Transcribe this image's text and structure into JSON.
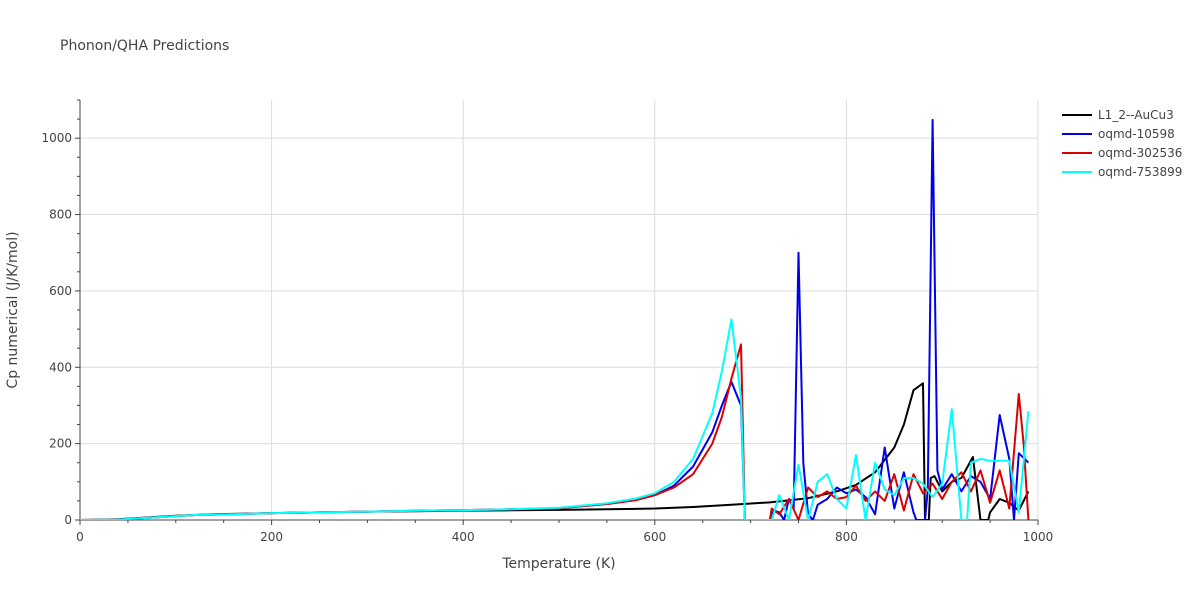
{
  "chart_data": {
    "type": "line",
    "title": "Phonon/QHA Predictions",
    "xlabel": "Temperature (K)",
    "ylabel": "Cp numerical (J/K/mol)",
    "xlim": [
      0,
      1000
    ],
    "ylim": [
      0,
      1100
    ],
    "xticks": [
      0,
      200,
      400,
      600,
      800,
      1000
    ],
    "yticks": [
      0,
      200,
      400,
      600,
      800,
      1000
    ],
    "grid": true,
    "legend_position": "top-right",
    "series": [
      {
        "name": "L1_2--AuCu3",
        "color": "#000000",
        "points": [
          [
            0,
            0
          ],
          [
            20,
            0.5
          ],
          [
            40,
            2
          ],
          [
            60,
            5
          ],
          [
            80,
            8
          ],
          [
            100,
            11
          ],
          [
            120,
            13
          ],
          [
            140,
            15
          ],
          [
            160,
            16
          ],
          [
            180,
            17
          ],
          [
            200,
            18
          ],
          [
            250,
            20
          ],
          [
            300,
            22
          ],
          [
            350,
            23
          ],
          [
            400,
            24.5
          ],
          [
            450,
            25.5
          ],
          [
            500,
            26.5
          ],
          [
            550,
            28
          ],
          [
            600,
            30
          ],
          [
            640,
            34
          ],
          [
            680,
            40
          ],
          [
            720,
            46
          ],
          [
            760,
            57
          ],
          [
            790,
            75
          ],
          [
            810,
            92
          ],
          [
            830,
            125
          ],
          [
            850,
            190
          ],
          [
            860,
            250
          ],
          [
            870,
            340
          ],
          [
            880,
            358
          ],
          [
            882,
            0
          ],
          [
            886,
            0
          ],
          [
            888,
            110
          ],
          [
            892,
            115
          ],
          [
            896,
            95
          ],
          [
            900,
            75
          ],
          [
            910,
            100
          ],
          [
            920,
            110
          ],
          [
            932,
            165
          ],
          [
            940,
            0
          ],
          [
            948,
            0
          ],
          [
            950,
            20
          ],
          [
            960,
            55
          ],
          [
            970,
            45
          ],
          [
            980,
            25
          ],
          [
            990,
            75
          ]
        ]
      },
      {
        "name": "oqmd-10598",
        "color": "#0000ee",
        "points": [
          [
            0,
            0
          ],
          [
            40,
            1
          ],
          [
            80,
            7
          ],
          [
            120,
            13
          ],
          [
            160,
            15
          ],
          [
            200,
            18
          ],
          [
            250,
            20
          ],
          [
            300,
            22
          ],
          [
            350,
            24
          ],
          [
            400,
            26
          ],
          [
            450,
            28
          ],
          [
            500,
            31
          ],
          [
            550,
            42
          ],
          [
            580,
            52
          ],
          [
            600,
            65
          ],
          [
            620,
            90
          ],
          [
            640,
            140
          ],
          [
            660,
            230
          ],
          [
            670,
            300
          ],
          [
            680,
            362
          ],
          [
            690,
            300
          ],
          [
            694,
            0
          ],
          [
            720,
            0
          ],
          [
            724,
            25
          ],
          [
            730,
            20
          ],
          [
            735,
            0
          ],
          [
            740,
            55
          ],
          [
            745,
            30
          ],
          [
            750,
            700
          ],
          [
            755,
            150
          ],
          [
            760,
            15
          ],
          [
            765,
            0
          ],
          [
            770,
            40
          ],
          [
            780,
            55
          ],
          [
            790,
            85
          ],
          [
            800,
            70
          ],
          [
            810,
            80
          ],
          [
            820,
            60
          ],
          [
            830,
            15
          ],
          [
            840,
            190
          ],
          [
            850,
            30
          ],
          [
            860,
            125
          ],
          [
            870,
            20
          ],
          [
            873,
            0
          ],
          [
            882,
            0
          ],
          [
            885,
            80
          ],
          [
            890,
            1048
          ],
          [
            895,
            130
          ],
          [
            900,
            80
          ],
          [
            910,
            120
          ],
          [
            920,
            75
          ],
          [
            930,
            115
          ],
          [
            940,
            100
          ],
          [
            950,
            55
          ],
          [
            960,
            275
          ],
          [
            970,
            160
          ],
          [
            975,
            0
          ],
          [
            980,
            175
          ],
          [
            990,
            150
          ]
        ]
      },
      {
        "name": "oqmd-302536",
        "color": "#dd0000",
        "points": [
          [
            0,
            0
          ],
          [
            40,
            1
          ],
          [
            80,
            7
          ],
          [
            120,
            13
          ],
          [
            160,
            15
          ],
          [
            200,
            18
          ],
          [
            250,
            20
          ],
          [
            300,
            22
          ],
          [
            350,
            24
          ],
          [
            400,
            26
          ],
          [
            450,
            28
          ],
          [
            500,
            31
          ],
          [
            550,
            42
          ],
          [
            580,
            52
          ],
          [
            600,
            65
          ],
          [
            620,
            85
          ],
          [
            640,
            120
          ],
          [
            660,
            200
          ],
          [
            670,
            270
          ],
          [
            680,
            370
          ],
          [
            690,
            460
          ],
          [
            694,
            0
          ],
          [
            720,
            0
          ],
          [
            722,
            30
          ],
          [
            730,
            15
          ],
          [
            740,
            55
          ],
          [
            750,
            0
          ],
          [
            760,
            85
          ],
          [
            770,
            60
          ],
          [
            780,
            75
          ],
          [
            790,
            55
          ],
          [
            800,
            60
          ],
          [
            810,
            90
          ],
          [
            820,
            50
          ],
          [
            830,
            75
          ],
          [
            840,
            50
          ],
          [
            850,
            120
          ],
          [
            860,
            25
          ],
          [
            870,
            120
          ],
          [
            880,
            70
          ],
          [
            890,
            95
          ],
          [
            900,
            55
          ],
          [
            910,
            100
          ],
          [
            920,
            125
          ],
          [
            930,
            75
          ],
          [
            940,
            130
          ],
          [
            950,
            45
          ],
          [
            960,
            130
          ],
          [
            965,
            80
          ],
          [
            970,
            30
          ],
          [
            980,
            330
          ],
          [
            985,
            200
          ],
          [
            990,
            0
          ]
        ]
      },
      {
        "name": "oqmd-753899",
        "color": "#00ffff",
        "points": [
          [
            0,
            0
          ],
          [
            40,
            1
          ],
          [
            80,
            7
          ],
          [
            120,
            13
          ],
          [
            160,
            15
          ],
          [
            200,
            18
          ],
          [
            250,
            20
          ],
          [
            300,
            22
          ],
          [
            350,
            24
          ],
          [
            400,
            26
          ],
          [
            450,
            28
          ],
          [
            500,
            32
          ],
          [
            550,
            44
          ],
          [
            580,
            56
          ],
          [
            600,
            70
          ],
          [
            620,
            100
          ],
          [
            640,
            160
          ],
          [
            660,
            280
          ],
          [
            670,
            390
          ],
          [
            680,
            525
          ],
          [
            690,
            320
          ],
          [
            694,
            0
          ],
          [
            722,
            0
          ],
          [
            730,
            65
          ],
          [
            740,
            0
          ],
          [
            750,
            145
          ],
          [
            760,
            0
          ],
          [
            770,
            100
          ],
          [
            780,
            120
          ],
          [
            790,
            55
          ],
          [
            800,
            30
          ],
          [
            810,
            170
          ],
          [
            820,
            0
          ],
          [
            830,
            150
          ],
          [
            840,
            80
          ],
          [
            850,
            65
          ],
          [
            860,
            110
          ],
          [
            870,
            110
          ],
          [
            880,
            95
          ],
          [
            890,
            60
          ],
          [
            900,
            95
          ],
          [
            910,
            290
          ],
          [
            920,
            0
          ],
          [
            926,
            0
          ],
          [
            930,
            150
          ],
          [
            940,
            160
          ],
          [
            950,
            155
          ],
          [
            960,
            155
          ],
          [
            970,
            155
          ],
          [
            980,
            20
          ],
          [
            990,
            285
          ]
        ]
      }
    ]
  }
}
